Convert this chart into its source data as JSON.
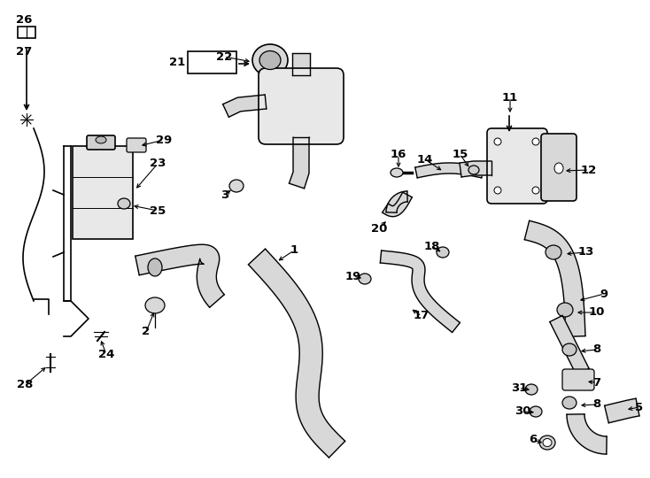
{
  "bg_color": "#ffffff",
  "line_color": "#000000",
  "fig_width": 7.34,
  "fig_height": 5.4,
  "dpi": 100,
  "lw_hose": 1.0,
  "lw_part": 1.2,
  "lw_label": 0.8,
  "font_size": 9.5,
  "hose_fill": "#d8d8d8",
  "part_fill": "#e8e8e8"
}
